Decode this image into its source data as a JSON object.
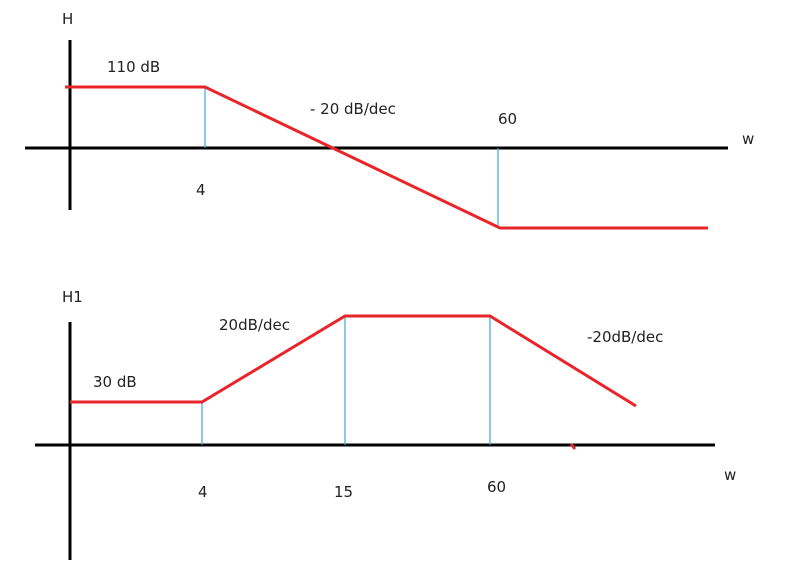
{
  "diagrams": [
    {
      "y_axis_label": "H",
      "x_axis_label": "w",
      "level_label": "110 dB",
      "slope_label": "-  20 dB/dec",
      "breakpoints": [
        "4",
        "60"
      ]
    },
    {
      "y_axis_label": "H1",
      "x_axis_label": "w",
      "level_label": "30 dB",
      "slope_labels": [
        "20dB/dec",
        "-20dB/dec"
      ],
      "breakpoints": [
        "4",
        "15",
        "60"
      ]
    }
  ]
}
